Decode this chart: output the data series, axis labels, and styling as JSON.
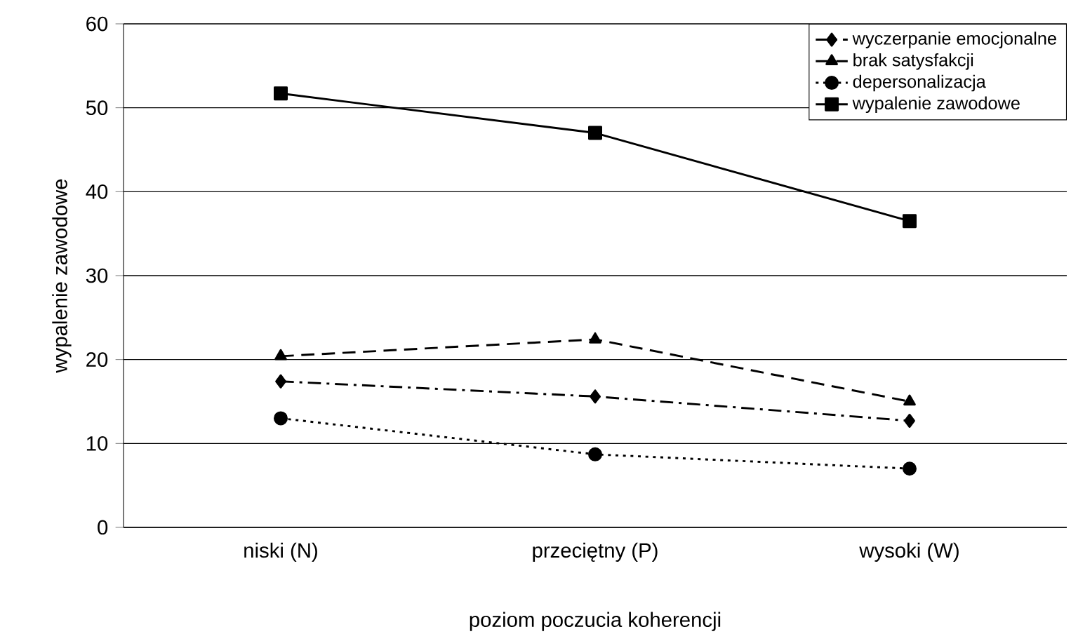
{
  "chart_data": {
    "type": "line",
    "xlabel": "poziom poczucia koherencji",
    "ylabel": "wypalenie zawodowe",
    "categories": [
      "niski (N)",
      "przeciętny (P)",
      "wysoki (W)"
    ],
    "series": [
      {
        "name": "wyczerpanie emocjonalne",
        "color": "#000000",
        "values": [
          17.4,
          15.6,
          12.7
        ],
        "marker": "diamond",
        "line_style": "dashdot"
      },
      {
        "name": "brak satysfakcji",
        "color": "#000000",
        "values": [
          20.4,
          22.4,
          15.0
        ],
        "marker": "triangle",
        "line_style": "dashed"
      },
      {
        "name": "depersonalizacja",
        "color": "#000000",
        "values": [
          13.0,
          8.7,
          7.0
        ],
        "marker": "circle",
        "line_style": "dotted"
      },
      {
        "name": "wypalenie zawodowe",
        "color": "#000000",
        "values": [
          51.7,
          47.0,
          36.5
        ],
        "marker": "square",
        "line_style": "solid"
      }
    ],
    "ylim": [
      0,
      60
    ],
    "yticks": [
      0,
      10,
      20,
      30,
      40,
      50,
      60
    ],
    "grid": "y",
    "legend": "top right"
  }
}
